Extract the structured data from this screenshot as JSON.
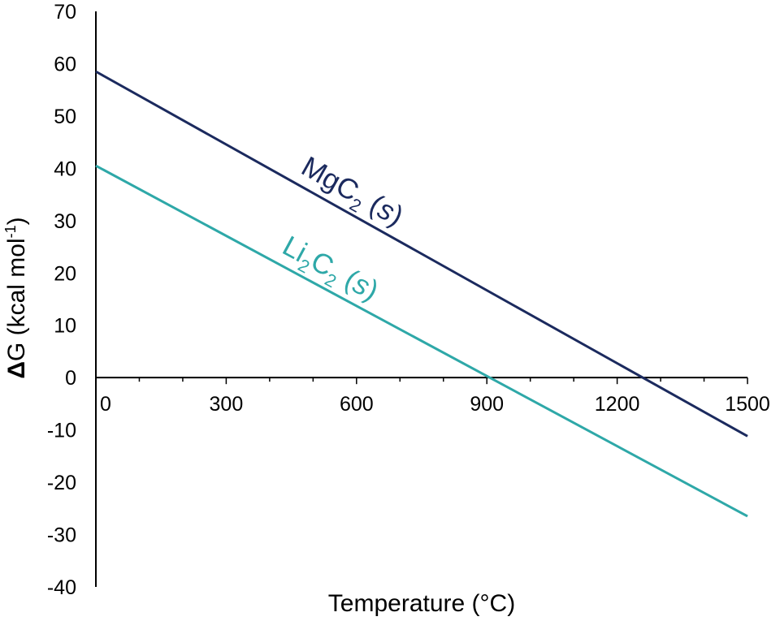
{
  "chart_data": {
    "type": "line",
    "title": "",
    "xlabel": "Temperature (°C)",
    "ylabel": {
      "delta": "Δ",
      "main": "G (kcal mol",
      "sup": "-1",
      "end": ")"
    },
    "xlim": [
      0,
      1500
    ],
    "ylim": [
      -40,
      70
    ],
    "x_ticks": [
      0,
      300,
      600,
      900,
      1200,
      1500
    ],
    "x_minor_step": 100,
    "y_ticks": [
      70,
      60,
      50,
      40,
      30,
      20,
      10,
      0,
      -10,
      -20,
      -30,
      -40
    ],
    "grid": false,
    "legend": "none",
    "series": [
      {
        "name": "MgC2 (s)",
        "label_parts": {
          "base": "MgC",
          "sub": "2",
          "phase": "s"
        },
        "color": "#1b2a5e",
        "x": [
          0,
          1500
        ],
        "y": [
          58.5,
          -11.2
        ]
      },
      {
        "name": "Li2C2 (s)",
        "label_parts": {
          "base1": "Li",
          "sub1": "2",
          "base2": "C",
          "sub2": "2",
          "phase": "s"
        },
        "color": "#2ea8a8",
        "x": [
          0,
          1500
        ],
        "y": [
          40.5,
          -26.5
        ]
      }
    ]
  }
}
